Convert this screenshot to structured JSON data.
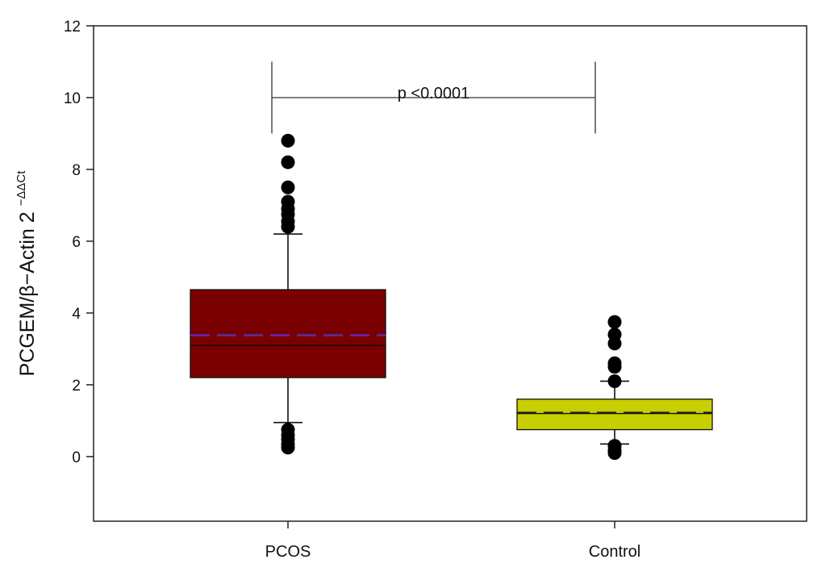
{
  "chart_data": {
    "type": "box",
    "ylabel": "PCGEM/β−Actin 2",
    "ylabel_superscript": "−ΔΔCt",
    "ylim": [
      -1.8,
      12
    ],
    "yticks": [
      0,
      2,
      4,
      6,
      8,
      10,
      12
    ],
    "categories": [
      "PCOS",
      "Control"
    ],
    "boxes": [
      {
        "category": "PCOS",
        "q1": 2.2,
        "median": 3.1,
        "mean": 3.38,
        "q3": 4.65,
        "whisker_low": 0.95,
        "whisker_high": 6.2,
        "outliers": [
          8.8,
          8.2,
          7.5,
          7.1,
          6.9,
          6.75,
          6.55,
          6.4,
          0.75,
          0.6,
          0.48,
          0.35,
          0.25
        ],
        "fill": "#7a0000",
        "mean_line_color": "#5b2aa8"
      },
      {
        "category": "Control",
        "q1": 0.75,
        "median": 1.2,
        "mean": 1.22,
        "q3": 1.6,
        "whisker_low": 0.35,
        "whisker_high": 2.1,
        "outliers": [
          3.75,
          3.4,
          3.15,
          2.6,
          2.5,
          2.1,
          0.3,
          0.18,
          0.1
        ],
        "fill": "#c8cf00",
        "mean_line_color": "#1a1a1a"
      }
    ],
    "annotation": {
      "text": "p <0.0001",
      "from": "PCOS",
      "to": "Control",
      "bar_y": 10,
      "arm_top": 11,
      "arm_bottom": 9
    },
    "grid": false
  }
}
